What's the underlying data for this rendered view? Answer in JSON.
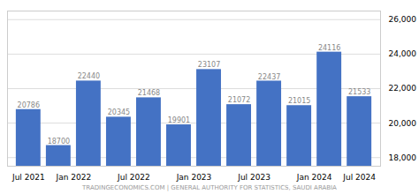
{
  "chart_data": {
    "type": "bar",
    "caption": "TRADINGECONOMICS.COM | GENERAL AUTHORITY FOR STATISTICS, SAUDI ARABIA",
    "categories": [
      "Jul 2021",
      "Jan 2022",
      null,
      "Jul 2022",
      null,
      "Jan 2023",
      null,
      "Jul 2023",
      null,
      "Jan 2024",
      null,
      "Jul 2024"
    ],
    "values": [
      20786,
      18700,
      22440,
      20345,
      21468,
      19901,
      23107,
      21072,
      22437,
      21015,
      24116,
      21533
    ],
    "color": "#4472c4",
    "ylim": [
      17500,
      26500
    ],
    "yticks": [
      {
        "value": 18000,
        "label": "18,000"
      },
      {
        "value": 20000,
        "label": "20,000"
      },
      {
        "value": 22000,
        "label": "22,000"
      },
      {
        "value": 24000,
        "label": "24,000"
      },
      {
        "value": 26000,
        "label": "26,000"
      }
    ],
    "grid": true,
    "data_labels": true
  }
}
